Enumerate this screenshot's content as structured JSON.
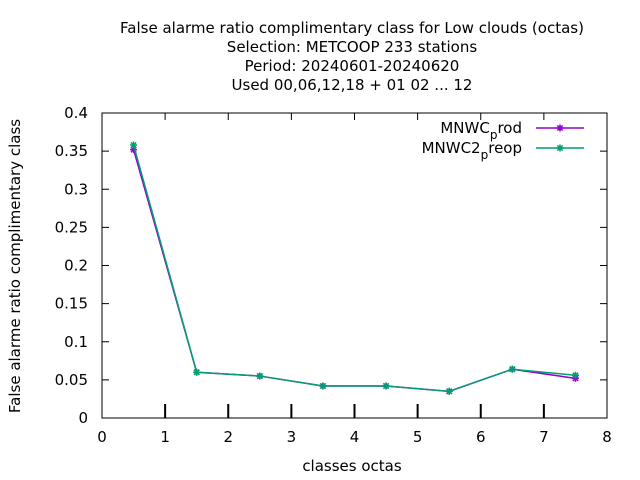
{
  "chart_data": {
    "type": "line",
    "title_lines": [
      "False alarme ratio complimentary class  for Low clouds (octas)",
      "Selection: METCOOP    233 stations",
      "Period: 20240601-20240620",
      "Used  00,06,12,18 + 01 02 ... 12"
    ],
    "xlabel": "classes octas",
    "ylabel": "False alarme ratio complimentary class",
    "xlim": [
      0,
      8
    ],
    "ylim": [
      0,
      0.4
    ],
    "xticks": [
      0,
      1,
      2,
      3,
      4,
      5,
      6,
      7,
      8
    ],
    "yticks": [
      0,
      0.05,
      0.1,
      0.15,
      0.2,
      0.25,
      0.3,
      0.35,
      0.4
    ],
    "xtick_labels": [
      "0",
      "1",
      "2",
      "3",
      "4",
      "5",
      "6",
      "7",
      "8"
    ],
    "ytick_labels": [
      "0",
      "0.05",
      "0.1",
      "0.15",
      "0.2",
      "0.25",
      "0.3",
      "0.35",
      "0.4"
    ],
    "grid": false,
    "legend_position": "top-right",
    "series": [
      {
        "name_main": "MNWC",
        "name_sub": "p",
        "name_tail": "rod",
        "color": "#9400d3",
        "x": [
          0.5,
          1.5,
          2.5,
          3.5,
          4.5,
          5.5,
          6.5,
          7.5
        ],
        "y": [
          0.352,
          0.06,
          0.055,
          0.042,
          0.042,
          0.035,
          0.064,
          0.052
        ]
      },
      {
        "name_main": "MNWC2",
        "name_sub": "p",
        "name_tail": "reop",
        "color": "#009e73",
        "x": [
          0.5,
          1.5,
          2.5,
          3.5,
          4.5,
          5.5,
          6.5,
          7.5
        ],
        "y": [
          0.358,
          0.06,
          0.055,
          0.042,
          0.042,
          0.035,
          0.064,
          0.056
        ]
      }
    ]
  }
}
